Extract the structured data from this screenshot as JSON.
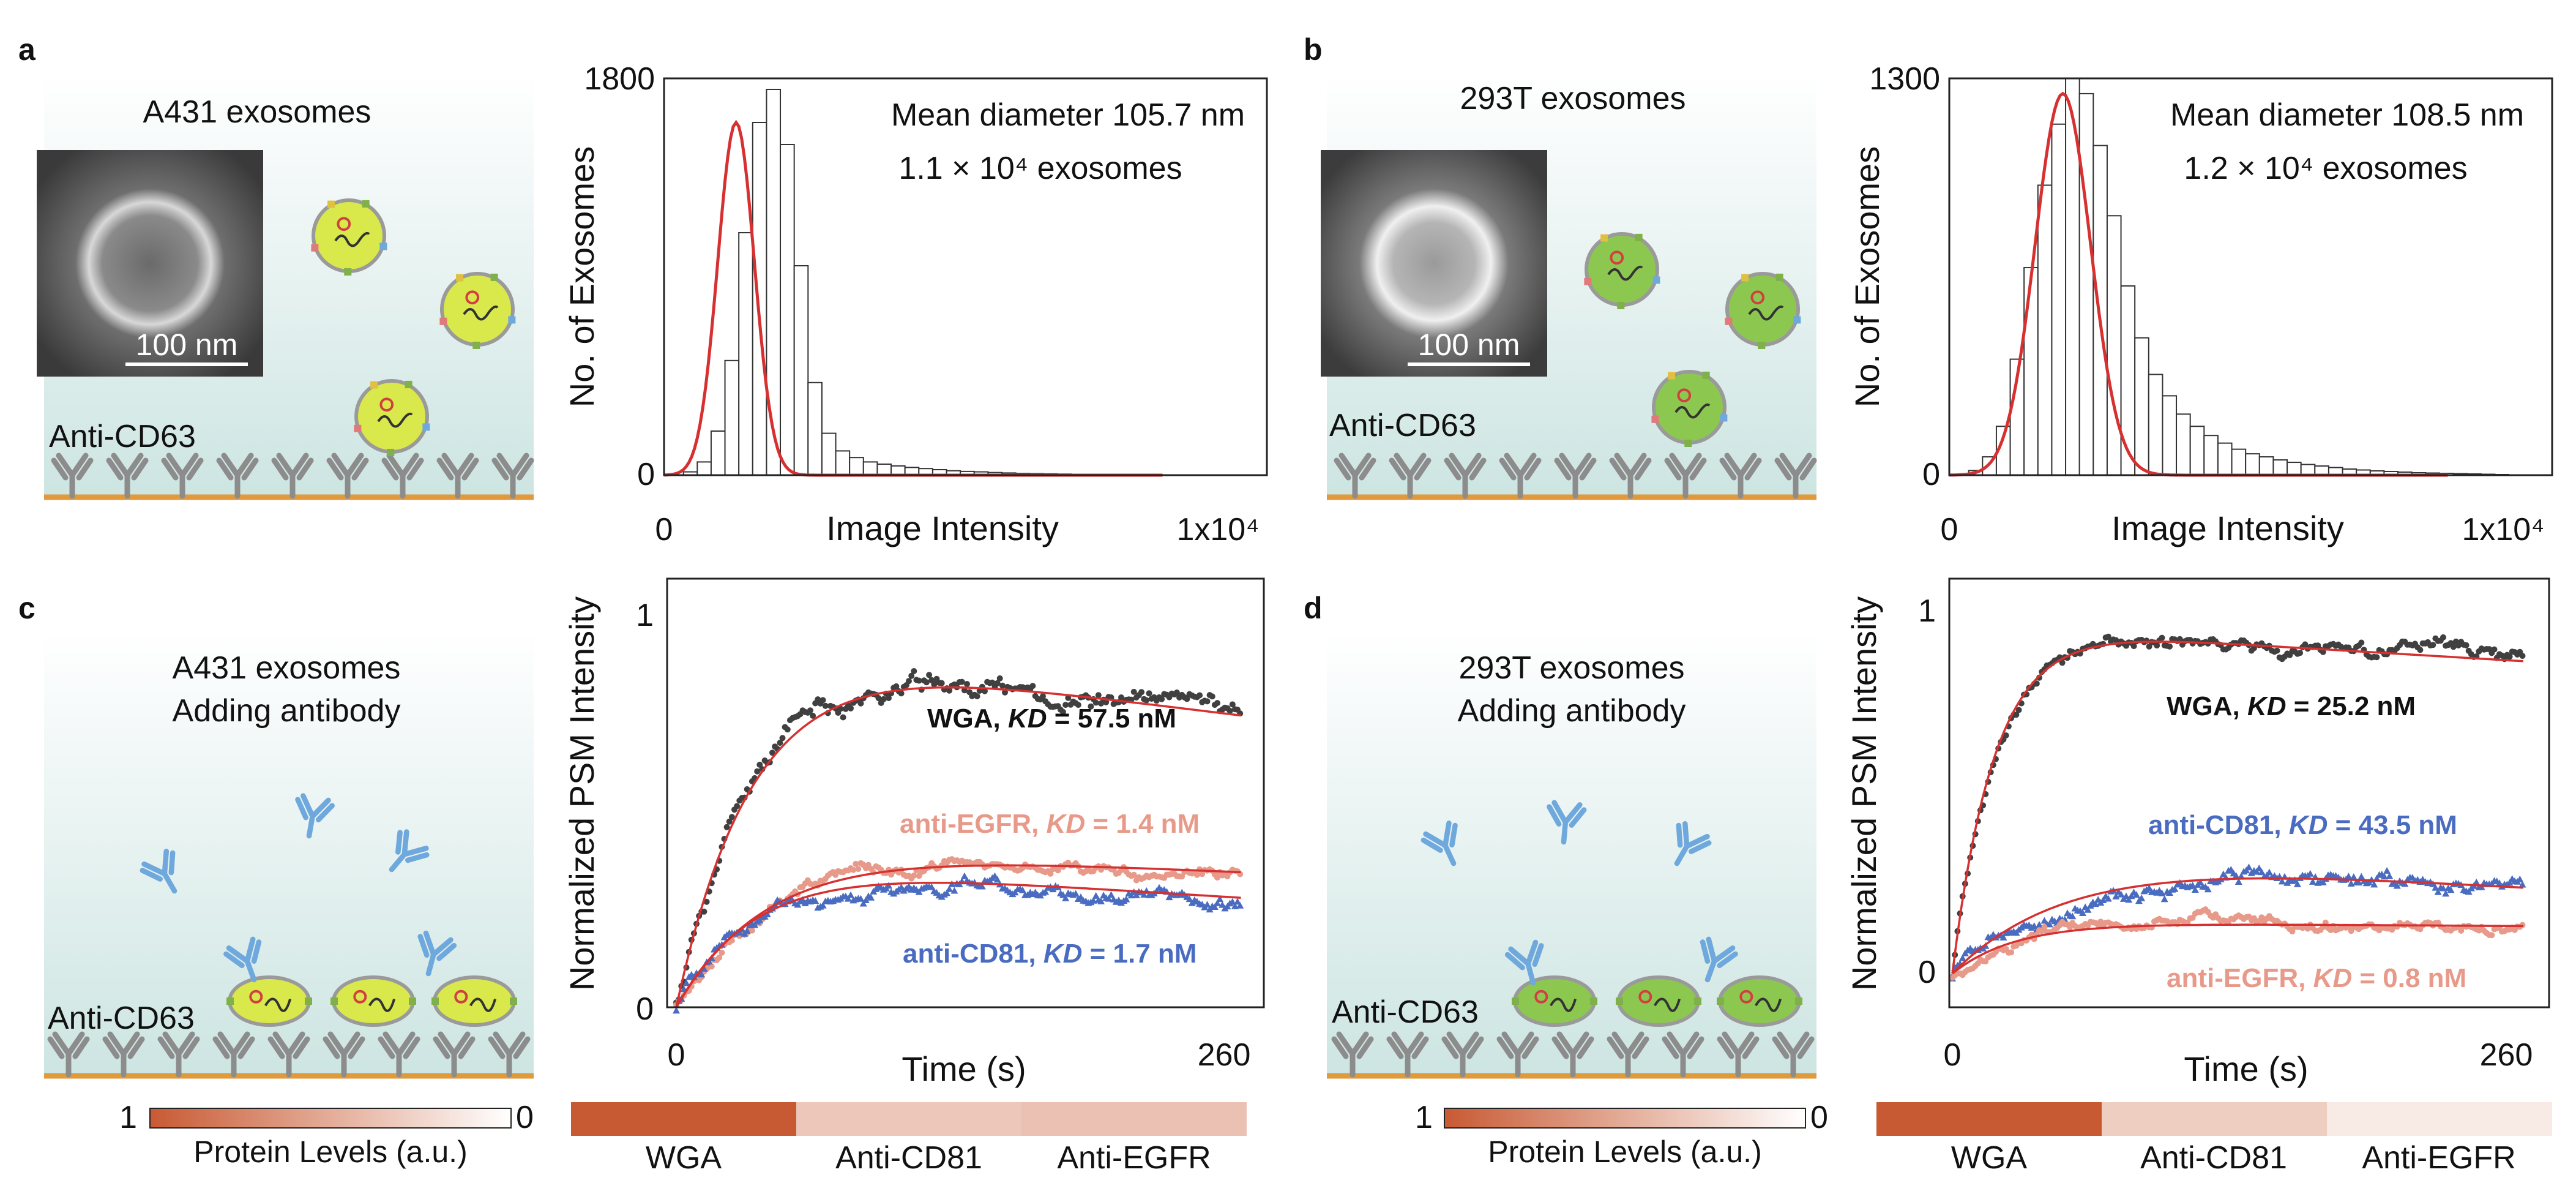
{
  "panel_labels": {
    "a": "a",
    "b": "b",
    "c": "c",
    "d": "d"
  },
  "panel_a": {
    "title": "A431 exosomes",
    "scale_bar": "100 nm",
    "surface_label": "Anti-CD63"
  },
  "panel_b": {
    "title": "293T exosomes",
    "scale_bar": "100 nm",
    "surface_label": "Anti-CD63"
  },
  "panel_c": {
    "title_line1": "A431 exosomes",
    "title_line2": "Adding antibody",
    "surface_label": "Anti-CD63",
    "legend_max": "1",
    "legend_min": "0",
    "legend_label": "Protein Levels (a.u.)"
  },
  "panel_d": {
    "title_line1": "293T exosomes",
    "title_line2": "Adding antibody",
    "surface_label": "Anti-CD63",
    "legend_max": "1",
    "legend_min": "0",
    "legend_label": "Protein Levels (a.u.)"
  },
  "colors": {
    "background_top": "#ffffff",
    "background_bottom": "#cde5e2",
    "gold_line": "#e09a3c",
    "antibody_gray": "#8c8c8c",
    "antibody_blue": "#6fa8dc",
    "exosome_a431": "#d9e84a",
    "exosome_293t": "#8cc850",
    "fit_red": "#d63030",
    "wga_gray": "#404040",
    "egfr_pink": "#e89a8a",
    "cd81_blue": "#4a6cc0",
    "level_dark": "#c85a33"
  },
  "chart_data": [
    {
      "id": "hist-a",
      "type": "bar",
      "title": "Mean diameter 105.7 nm",
      "subtitle": "1.1 × 10⁴ exosomes",
      "xlabel": "Image Intensity",
      "ylabel": "No. of Exosomes",
      "xlim": [
        0,
        10000
      ],
      "ylim": [
        0,
        1800
      ],
      "xtick_labels": [
        "0",
        "1x10⁴"
      ],
      "ytick_labels": [
        "0",
        "1800"
      ],
      "bin_width": 250,
      "values": [
        0,
        15,
        60,
        200,
        520,
        1100,
        1600,
        1750,
        1500,
        950,
        420,
        190,
        110,
        80,
        60,
        50,
        42,
        35,
        30,
        25,
        20,
        17,
        15,
        12,
        10,
        8,
        7,
        6,
        5,
        4,
        3,
        3,
        2,
        2,
        2,
        1,
        1,
        1,
        1,
        1
      ],
      "fit": {
        "mean": 1300,
        "sd": 330,
        "amp": 1600
      }
    },
    {
      "id": "hist-b",
      "type": "bar",
      "title": "Mean diameter 108.5 nm",
      "subtitle": "1.2 × 10⁴ exosomes",
      "xlabel": "Image Intensity",
      "ylabel": "No. of Exosomes",
      "xlim": [
        0,
        10000
      ],
      "ylim": [
        0,
        1300
      ],
      "xtick_labels": [
        "0",
        "1x10⁴"
      ],
      "ytick_labels": [
        "0",
        "1300"
      ],
      "bin_width": 250,
      "values": [
        0,
        15,
        60,
        160,
        380,
        680,
        950,
        1150,
        1300,
        1250,
        1080,
        850,
        620,
        450,
        330,
        260,
        200,
        160,
        130,
        105,
        85,
        70,
        60,
        50,
        42,
        35,
        30,
        25,
        20,
        17,
        14,
        12,
        10,
        8,
        7,
        6,
        5,
        4,
        3,
        2
      ],
      "fit": {
        "mean": 2050,
        "sd": 500,
        "amp": 1250
      }
    },
    {
      "id": "kin-c",
      "type": "scatter",
      "xlabel": "Time (s)",
      "ylabel": "Normalized PSM Intensity",
      "xlim": [
        0,
        260
      ],
      "ylim": [
        0,
        1
      ],
      "xtick_labels": [
        "0",
        "260"
      ],
      "ytick_labels": [
        "0",
        "1"
      ],
      "series": [
        {
          "name": "WGA",
          "label_prefix": "WGA, ",
          "kd_symbol": "KD",
          "kd_value": " = 57.5 nM",
          "plateau": 0.9,
          "tau": 38,
          "decay": 0.0009,
          "noise": 0.05,
          "marker": "circle"
        },
        {
          "name": "anti-EGFR",
          "label_prefix": "anti-EGFR, ",
          "kd_symbol": "KD",
          "kd_value": " = 1.4 nM",
          "plateau": 0.4,
          "tau": 45,
          "decay": 0.0007,
          "noise": 0.03,
          "marker": "circle"
        },
        {
          "name": "anti-CD81",
          "label_prefix": "anti-CD81, ",
          "kd_symbol": "KD",
          "kd_value": " = 1.7 nM",
          "plateau": 0.36,
          "tau": 40,
          "decay": 0.0012,
          "noise": 0.035,
          "marker": "triangle"
        }
      ]
    },
    {
      "id": "kin-d",
      "type": "scatter",
      "xlabel": "Time (s)",
      "ylabel": "Normalized PSM Intensity",
      "xlim": [
        0,
        260
      ],
      "ylim": [
        0,
        1
      ],
      "xtick_labels": [
        "0",
        "260"
      ],
      "ytick_labels": [
        "0",
        "1"
      ],
      "series": [
        {
          "name": "WGA",
          "label_prefix": "WGA, ",
          "kd_symbol": "KD",
          "kd_value": " = 25.2 nM",
          "plateau": 0.94,
          "tau": 20,
          "decay": 0.0004,
          "noise": 0.035,
          "marker": "circle"
        },
        {
          "name": "anti-CD81",
          "label_prefix": "anti-CD81, ",
          "kd_symbol": "KD",
          "kd_value": " = 43.5 nM",
          "plateau": 0.33,
          "tau": 60,
          "decay": 0.0015,
          "noise": 0.04,
          "marker": "triangle"
        },
        {
          "name": "anti-EGFR",
          "label_prefix": "anti-EGFR, ",
          "kd_symbol": "KD",
          "kd_value": " = 0.8 nM",
          "plateau": 0.14,
          "tau": 30,
          "decay": 0.0003,
          "noise": 0.03,
          "marker": "circle"
        }
      ]
    },
    {
      "id": "heat-c",
      "type": "heatmap",
      "categories": [
        "WGA",
        "Anti-CD81",
        "Anti-EGFR"
      ],
      "values": [
        1.0,
        0.4,
        0.44
      ]
    },
    {
      "id": "heat-d",
      "type": "heatmap",
      "categories": [
        "WGA",
        "Anti-CD81",
        "Anti-EGFR"
      ],
      "values": [
        1.0,
        0.35,
        0.15
      ]
    }
  ]
}
